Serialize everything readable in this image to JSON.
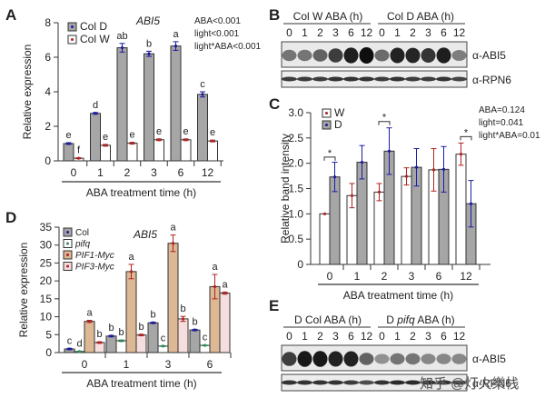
{
  "panels": {
    "A": {
      "letter": "A"
    },
    "B": {
      "letter": "B"
    },
    "C": {
      "letter": "C"
    },
    "D": {
      "letter": "D"
    },
    "E": {
      "letter": "E"
    }
  },
  "chart_data": [
    {
      "id": "A",
      "type": "bar",
      "title": "ABI5",
      "xlabel": "ABA treatment time (h)",
      "ylabel": "Relative expression",
      "ylim": [
        0,
        8
      ],
      "yticks": [
        "0",
        "2",
        "4",
        "6",
        "8"
      ],
      "categories": [
        "0",
        "1",
        "2",
        "3",
        "6",
        "12"
      ],
      "legend": {
        "position": "top-left",
        "entries": [
          "Col D",
          "Col W"
        ]
      },
      "stats": [
        "ABA<0.001",
        "light<0.001",
        "light*ABA<0.001"
      ],
      "series": [
        {
          "name": "Col D",
          "color": "#a6a6a6",
          "dot": "#1a1aa6",
          "values": [
            1.0,
            2.75,
            6.55,
            6.2,
            6.65,
            3.85
          ],
          "errors": [
            0.05,
            0.05,
            0.25,
            0.15,
            0.25,
            0.15
          ],
          "letters": [
            "e",
            "d",
            "ab",
            "b",
            "a",
            "c"
          ]
        },
        {
          "name": "Col W",
          "color": "#ffffff",
          "dot": "#b22222",
          "values": [
            0.15,
            0.9,
            1.02,
            1.22,
            1.22,
            1.15
          ],
          "errors": [
            0.03,
            0.05,
            0.05,
            0.05,
            0.05,
            0.05
          ],
          "letters": [
            "f",
            "e",
            "e",
            "e",
            "e",
            "e"
          ]
        }
      ]
    },
    {
      "id": "C",
      "type": "bar",
      "title": "",
      "xlabel": "ABA treatment time (h)",
      "ylabel": "Relative band intensity",
      "ylim": [
        0,
        3.0
      ],
      "yticks": [
        "0",
        "0.5",
        "1.0",
        "1.5",
        "2.0",
        "2.5",
        "3.0"
      ],
      "categories": [
        "0",
        "1",
        "2",
        "3",
        "6",
        "12"
      ],
      "legend": {
        "position": "top-left",
        "entries": [
          "W",
          "D"
        ]
      },
      "stats": [
        "ABA=0.124",
        "light=0.041",
        "light*ABA=0.01"
      ],
      "significance": [
        "*",
        "",
        "*",
        "",
        "",
        "*"
      ],
      "series": [
        {
          "name": "W",
          "color": "#ffffff",
          "dot": "#b22222",
          "values": [
            1.0,
            1.36,
            1.43,
            1.74,
            1.87,
            2.18
          ],
          "errors": [
            0.0,
            0.24,
            0.17,
            0.17,
            0.42,
            0.22
          ]
        },
        {
          "name": "D",
          "color": "#a6a6a6",
          "dot": "#1a1aa6",
          "values": [
            1.73,
            2.02,
            2.24,
            1.92,
            1.88,
            1.2
          ],
          "errors": [
            0.29,
            0.33,
            0.46,
            0.37,
            0.45,
            0.46
          ]
        }
      ]
    },
    {
      "id": "D",
      "type": "bar",
      "title": "ABI5",
      "xlabel": "ABA treatment time (h)",
      "ylabel": "Relative expression",
      "ylim": [
        0,
        35
      ],
      "yticks": [
        "0",
        "5",
        "10",
        "15",
        "20",
        "25",
        "30",
        "35"
      ],
      "categories": [
        "0",
        "1",
        "3",
        "6"
      ],
      "legend": {
        "position": "top-left",
        "entries": [
          "Col",
          "pifq",
          "PIF1-Myc",
          "PIF3-Myc"
        ]
      },
      "series": [
        {
          "name": "Col",
          "color": "#a6a6a6",
          "dot": "#1a1aa6",
          "values": [
            1.0,
            4.6,
            8.3,
            6.3
          ],
          "errors": [
            0.2,
            0.2,
            0.2,
            0.2
          ],
          "letters": [
            "c",
            "b",
            "b",
            "b"
          ]
        },
        {
          "name": "pifq",
          "color": "#ffffff",
          "dot": "#2e8b57",
          "values": [
            0.3,
            3.3,
            1.8,
            2.0
          ],
          "errors": [
            0.1,
            0.2,
            0.1,
            0.1
          ],
          "letters": [
            "d",
            "b",
            "c",
            "c"
          ]
        },
        {
          "name": "PIF1-Myc",
          "color": "#dcb894",
          "dot": "#b22222",
          "values": [
            8.7,
            22.6,
            30.5,
            18.4
          ],
          "errors": [
            0.3,
            2.0,
            2.3,
            3.4
          ],
          "letters": [
            "a",
            "a",
            "a",
            "a"
          ]
        },
        {
          "name": "PIF3-Myc",
          "color": "#f7dede",
          "dot": "#b22222",
          "values": [
            2.8,
            4.9,
            9.4,
            16.6
          ],
          "errors": [
            0.2,
            0.2,
            0.7,
            0.3
          ],
          "letters": [
            "b",
            "b",
            "b",
            "a"
          ]
        }
      ]
    }
  ],
  "blotB": {
    "group1": "Col W ABA (h)",
    "group2": "Col D ABA (h)",
    "lanes": [
      "0",
      "1",
      "2",
      "3",
      "6",
      "12",
      "0",
      "1",
      "2",
      "3",
      "6",
      "12"
    ],
    "abi5_intensity": [
      0.45,
      0.45,
      0.55,
      0.75,
      0.92,
      1.0,
      0.5,
      0.9,
      0.88,
      0.8,
      0.92,
      0.4
    ],
    "rpn6_intensity": [
      0.8,
      0.8,
      0.8,
      0.85,
      0.85,
      0.85,
      0.8,
      0.85,
      0.8,
      0.8,
      0.85,
      0.75
    ],
    "label_abi5": "α-ABI5",
    "label_rpn6": "α-RPN6"
  },
  "blotE": {
    "group1": "D Col ABA (h)",
    "group2_prefix": "D ",
    "group2_italic": "pifq",
    "group2_suffix": " ABA (h)",
    "lanes": [
      "0",
      "1",
      "2",
      "3",
      "6",
      "12",
      "0",
      "1",
      "2",
      "3",
      "6",
      "12"
    ],
    "abi5_intensity": [
      0.75,
      0.95,
      0.95,
      0.9,
      0.9,
      0.55,
      0.3,
      0.45,
      0.45,
      0.35,
      0.35,
      0.35
    ],
    "rpn6_intensity": [
      0.85,
      0.85,
      0.85,
      0.85,
      0.8,
      0.7,
      0.85,
      0.9,
      0.9,
      0.9,
      0.85,
      0.8
    ],
    "label_abi5": "α-ABI5",
    "label_rpn6": "α-RPN6"
  },
  "watermark": "知乎 @灯火樂栈"
}
